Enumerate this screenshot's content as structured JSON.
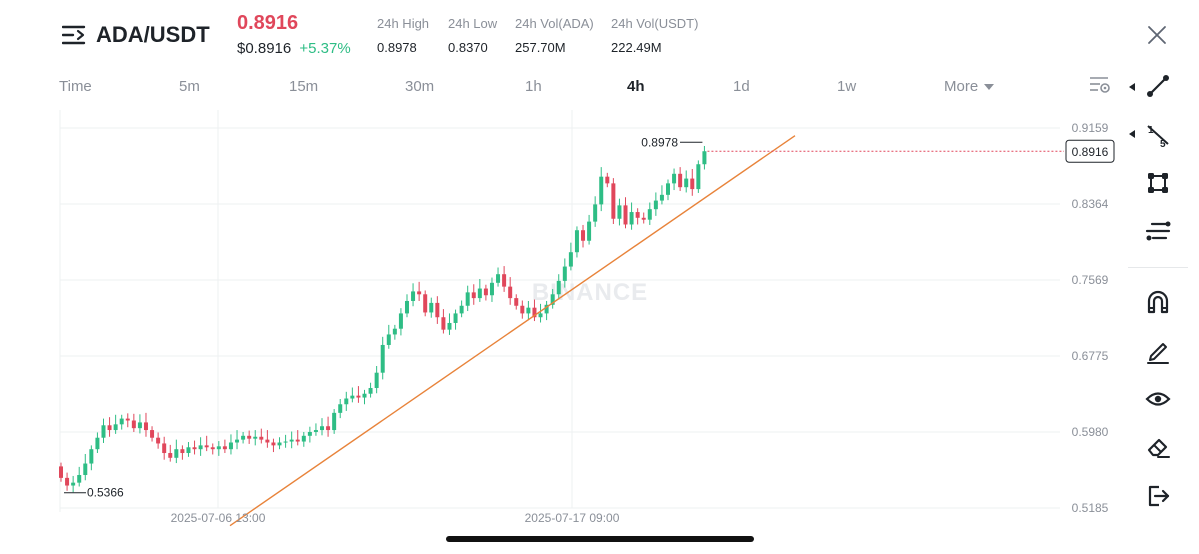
{
  "header": {
    "pair": "ADA/USDT",
    "price": "0.8916",
    "price_usd": "$0.8916",
    "change": "+5.37%",
    "stats": [
      {
        "label": "24h High",
        "value": "0.8978"
      },
      {
        "label": "24h Low",
        "value": "0.8370"
      },
      {
        "label": "24h Vol(ADA)",
        "value": "257.70M"
      },
      {
        "label": "24h Vol(USDT)",
        "value": "222.49M"
      }
    ]
  },
  "tabs": [
    {
      "label": "Time"
    },
    {
      "label": "5m"
    },
    {
      "label": "15m"
    },
    {
      "label": "30m"
    },
    {
      "label": "1h"
    },
    {
      "label": "4h",
      "active": true
    },
    {
      "label": "1d"
    },
    {
      "label": "1w"
    },
    {
      "label": "More"
    }
  ],
  "chart": {
    "watermark": "BINANCE",
    "y_axis_labels": [
      "0.9159",
      "0.8364",
      "0.7569",
      "0.6775",
      "0.5980",
      "0.5185"
    ],
    "x_axis_labels": [
      "2025-07-06 13:00",
      "2025-07-17 09:00"
    ],
    "current_price_label": "0.8916",
    "high_label": "0.8978",
    "low_label": "0.5366",
    "colors": {
      "up": "#2ebd85",
      "down": "#e0475b",
      "trendline": "#e8833a"
    }
  },
  "chart_data": {
    "type": "candlestick",
    "y_range": [
      0.5,
      0.93
    ],
    "trendline": {
      "from_price": 0.5,
      "to_price": 0.91
    },
    "current_price": 0.8916,
    "high": 0.8978,
    "low": 0.5366,
    "closes": [
      0.55,
      0.542,
      0.545,
      0.553,
      0.565,
      0.58,
      0.592,
      0.605,
      0.6,
      0.606,
      0.612,
      0.61,
      0.602,
      0.608,
      0.6,
      0.592,
      0.586,
      0.576,
      0.571,
      0.58,
      0.576,
      0.582,
      0.58,
      0.584,
      0.582,
      0.58,
      0.583,
      0.58,
      0.587,
      0.59,
      0.594,
      0.591,
      0.593,
      0.59,
      0.587,
      0.584,
      0.587,
      0.588,
      0.59,
      0.588,
      0.594,
      0.598,
      0.6,
      0.604,
      0.6,
      0.618,
      0.627,
      0.633,
      0.636,
      0.634,
      0.638,
      0.644,
      0.66,
      0.689,
      0.7,
      0.706,
      0.722,
      0.735,
      0.745,
      0.742,
      0.723,
      0.733,
      0.718,
      0.705,
      0.712,
      0.722,
      0.73,
      0.744,
      0.738,
      0.748,
      0.741,
      0.754,
      0.763,
      0.75,
      0.738,
      0.73,
      0.722,
      0.728,
      0.718,
      0.722,
      0.731,
      0.742,
      0.756,
      0.771,
      0.786,
      0.809,
      0.798,
      0.818,
      0.836,
      0.865,
      0.858,
      0.821,
      0.835,
      0.815,
      0.828,
      0.822,
      0.82,
      0.831,
      0.84,
      0.846,
      0.858,
      0.868,
      0.854,
      0.863,
      0.852,
      0.878,
      0.8916
    ]
  }
}
